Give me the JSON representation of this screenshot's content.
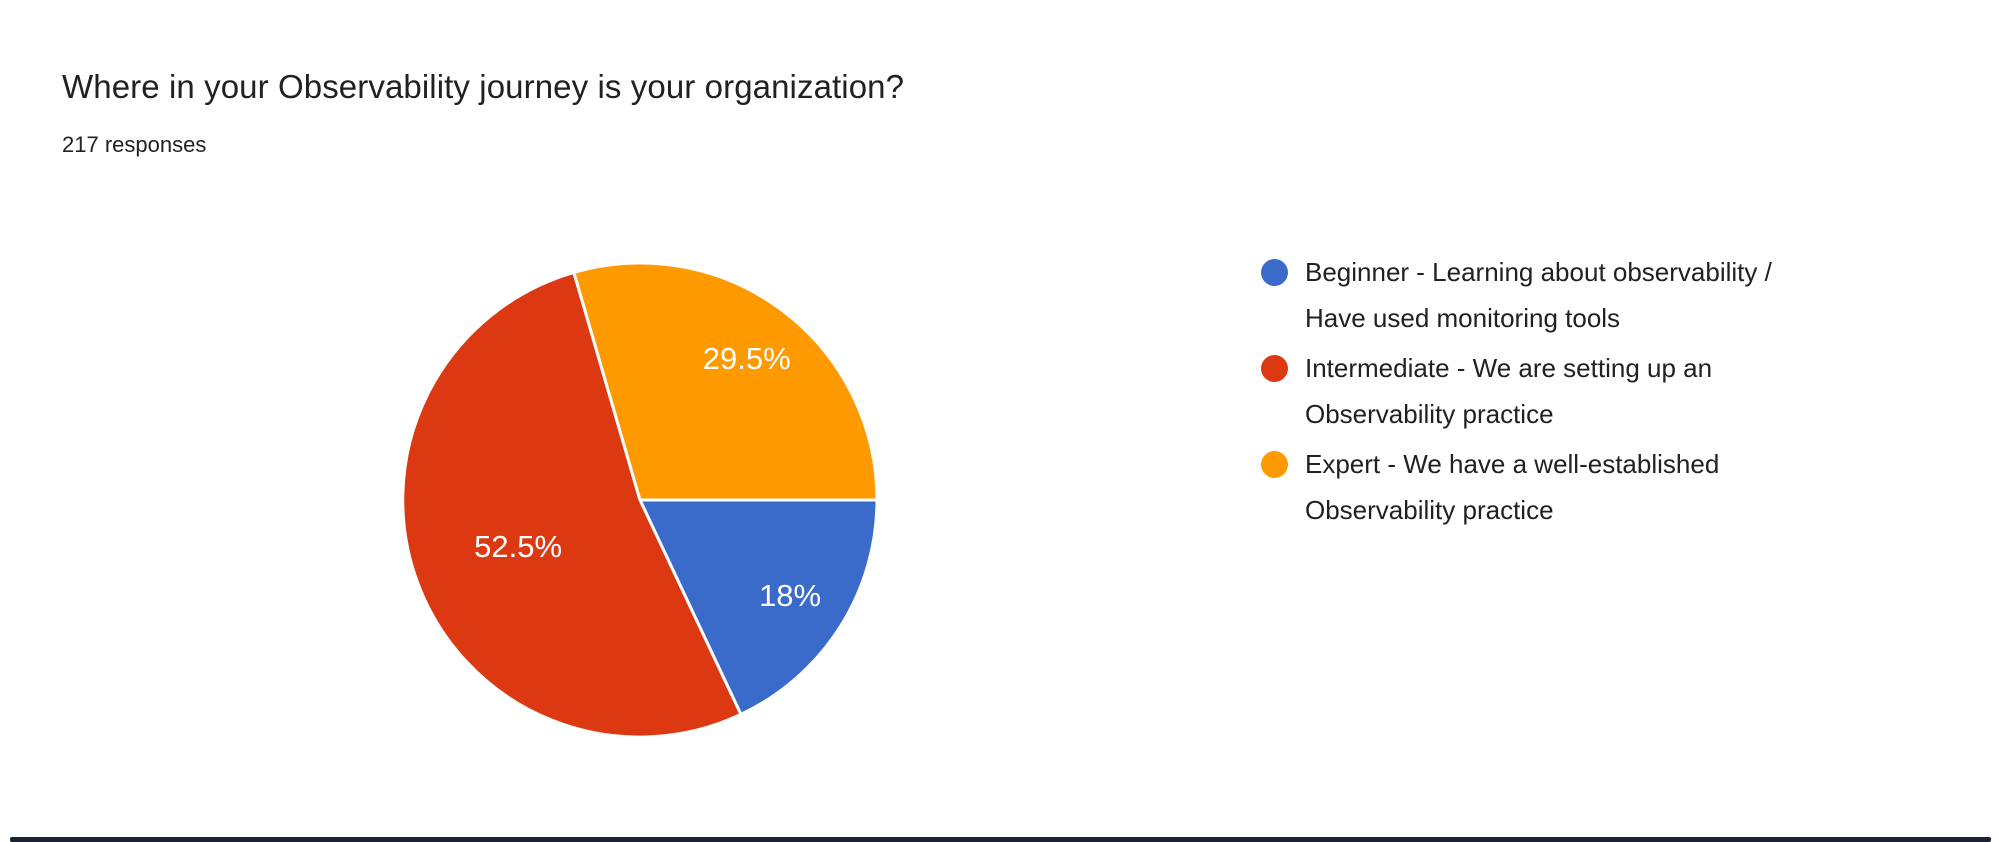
{
  "header": {
    "title": "Where in your Observability journey is your organization?",
    "responses": "217 responses"
  },
  "chart_data": {
    "type": "pie",
    "title": "Where in your Observability journey is your organization?",
    "subtitle": "217 responses",
    "total_responses": 217,
    "legend_position": "right",
    "start_angle_deg": 0,
    "direction": "clockwise",
    "slices": [
      {
        "label": "Beginner - Learning about observability / Have used monitoring tools",
        "value_pct": 18,
        "display_pct": "18%",
        "color": "#3B6BCA"
      },
      {
        "label": "Intermediate - We are setting up an Observability practice",
        "value_pct": 52.5,
        "display_pct": "52.5%",
        "color": "#DC3912"
      },
      {
        "label": "Expert - We have a well-established Observability practice",
        "value_pct": 29.5,
        "display_pct": "29.5%",
        "color": "#FF9900"
      }
    ]
  },
  "colors": {
    "title_text": "#202124",
    "legend_text": "#212121",
    "slice_label_text": "#FFFFFF",
    "background": "#FFFFFF",
    "bottom_bar": "#1B2130"
  }
}
